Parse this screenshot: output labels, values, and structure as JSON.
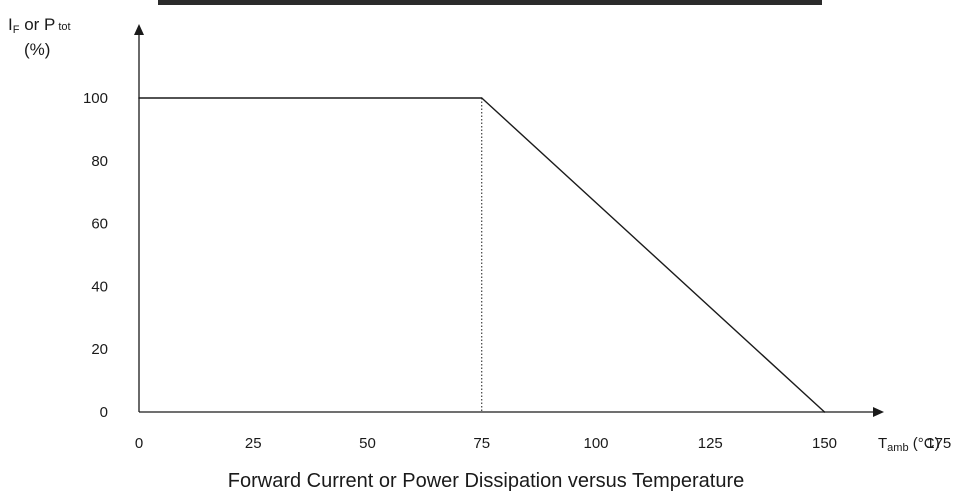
{
  "chart_data": {
    "type": "line",
    "title": "Forward Current or Power Dissipation versus Temperature",
    "y_title": {
      "line1_main": "I",
      "line1_sub": "F",
      "line1_mid": " or P",
      "line1_sub2": "tot",
      "line2": "(%)"
    },
    "x_title": {
      "main": "T",
      "sub": "amb",
      "unit": " (°C)"
    },
    "x_ticks": [
      "0",
      "25",
      "50",
      "75",
      "100",
      "125",
      "150",
      "175"
    ],
    "y_ticks": [
      "0",
      "20",
      "40",
      "60",
      "80",
      "100"
    ],
    "xlim": [
      0,
      200
    ],
    "ylim": [
      0,
      100
    ],
    "series": [
      {
        "x": [
          0,
          75,
          150
        ],
        "y": [
          100,
          100,
          0
        ]
      }
    ],
    "reference_lines": [
      {
        "x": 75,
        "style": "dotted"
      }
    ],
    "grid": false,
    "line_color": "#1a1a1a"
  }
}
